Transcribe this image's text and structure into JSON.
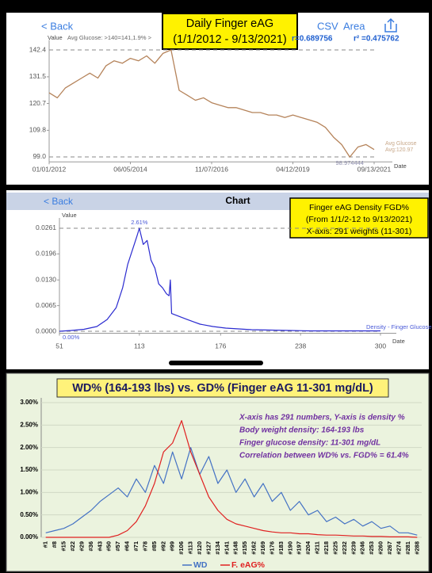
{
  "chart_data": [
    {
      "type": "line",
      "header": {
        "back": "< Back",
        "actions": [
          "CSV",
          "Area"
        ]
      },
      "title": [
        "Daily Finger eAG",
        "(1/1/2012 - 9/13/2021)"
      ],
      "y_label": "Value",
      "x_label": "Date",
      "annotations": [
        "Avg Glucose: >140=141,1.9% >",
        "r=0.689756",
        "r² =0.475762",
        "Avg:120.97"
      ],
      "categories": [
        "01/01/2012",
        null,
        null,
        null,
        null,
        null,
        null,
        null,
        null,
        null,
        "06/05/2014",
        null,
        null,
        null,
        null,
        null,
        null,
        null,
        null,
        null,
        "11/07/2016",
        null,
        null,
        null,
        null,
        null,
        null,
        null,
        null,
        null,
        "04/12/2019",
        null,
        null,
        null,
        null,
        null,
        null,
        null,
        null,
        null,
        "09/13/2021"
      ],
      "series": [
        {
          "name": "Avg Glucose",
          "color": "#b5835a",
          "values": [
            125,
            123,
            127,
            129,
            131,
            133,
            131,
            136,
            138,
            137,
            139,
            138,
            140,
            137,
            141,
            142.4,
            126,
            124,
            122,
            123,
            121,
            120,
            119,
            119,
            118,
            117,
            117,
            116,
            116,
            115,
            116,
            115,
            114,
            113,
            111,
            107,
            104,
            98.974444,
            103,
            104,
            102
          ],
          "value_labels": [
            null,
            null,
            null,
            null,
            null,
            null,
            null,
            null,
            null,
            null,
            null,
            null,
            null,
            null,
            null,
            null,
            null,
            null,
            null,
            null,
            null,
            null,
            null,
            null,
            null,
            null,
            null,
            null,
            null,
            null,
            null,
            null,
            null,
            null,
            null,
            null,
            null,
            "98.974444",
            null,
            null,
            null
          ]
        }
      ],
      "ylim": [
        97,
        144.5
      ],
      "yticks": [
        {
          "value": 99,
          "label": "99.0"
        },
        109.8,
        120.7,
        131.5,
        142.4
      ],
      "grid": false
    },
    {
      "type": "line",
      "header": {
        "back": "< Back",
        "title": "Chart"
      },
      "title": [
        "Finger eAG Density FGD%",
        "(From 1/1/2-12 to 9/13/2021)",
        "X-axis: 291 weights (11-301)"
      ],
      "y_label": "Value",
      "x_label": "Date",
      "x": [
        51,
        60,
        70,
        80,
        88,
        95,
        100,
        104,
        108,
        111,
        113,
        116,
        119,
        122,
        125,
        128,
        131,
        134,
        136,
        137,
        138,
        142,
        146,
        150,
        155,
        160,
        170,
        180,
        190,
        200,
        215,
        230,
        245,
        260,
        280,
        300
      ],
      "series": [
        {
          "name": "Density - Finger Glucose",
          "color": "#2b2bd0",
          "values": [
            0,
            0.0002,
            0.0005,
            0.0012,
            0.003,
            0.006,
            0.011,
            0.017,
            0.021,
            0.024,
            0.0261,
            0.022,
            0.023,
            0.018,
            0.016,
            0.012,
            0.011,
            0.0095,
            0.009,
            0.013,
            0.0045,
            0.004,
            0.0035,
            0.003,
            0.0024,
            0.0018,
            0.0012,
            0.0008,
            0.0006,
            0.0004,
            0.0003,
            0.0002,
            0.0001,
            0.0001,
            0.0001,
            0.0001
          ],
          "value_labels": [
            "0.00%",
            null,
            null,
            null,
            null,
            null,
            null,
            null,
            null,
            null,
            "2.61%",
            null,
            null,
            null,
            null,
            null,
            null,
            null,
            null,
            null,
            null,
            null,
            null,
            null,
            null,
            null,
            null,
            null,
            null,
            null,
            null,
            null,
            null,
            null,
            null,
            null
          ]
        }
      ],
      "xlim": [
        51,
        300
      ],
      "xticks": [
        51,
        113,
        176,
        238,
        300
      ],
      "ylim": [
        -0.0005,
        0.0275
      ],
      "yticks": [
        {
          "value": 0,
          "label": "0.0000"
        },
        0.0065,
        {
          "value": 0.013,
          "label": "0.0130"
        },
        0.0196,
        0.0261
      ],
      "grid": false
    },
    {
      "type": "line",
      "title": [
        "WD% (164-193 lbs)  vs.  GD% (Finger eAG 11-301 mg/dL)"
      ],
      "annotations": [
        "X-axis has 291 numbers, Y-axis is density %",
        "Body weight density:  164-193 lbs",
        "Finger glucose density:  11-301 mg/dL",
        "Correlation between WD% vs. FGD% = 61.4%"
      ],
      "categories": [
        "#1",
        "#8",
        "#15",
        "#22",
        "#29",
        "#36",
        "#43",
        "#50",
        "#57",
        "#64",
        "#71",
        "#78",
        "#85",
        "#92",
        "#99",
        "#106",
        "#113",
        "#120",
        "#127",
        "#134",
        "#141",
        "#148",
        "#155",
        "#162",
        "#169",
        "#176",
        "#183",
        "#190",
        "#197",
        "#204",
        "#211",
        "#218",
        "#225",
        "#232",
        "#239",
        "#246",
        "#253",
        "#260",
        "#267",
        "#274",
        "#281",
        "#288"
      ],
      "series": [
        {
          "name": "WD",
          "color": "#4472c4",
          "values": [
            0.1,
            0.15,
            0.2,
            0.3,
            0.45,
            0.6,
            0.8,
            0.95,
            1.1,
            0.9,
            1.3,
            1.0,
            1.6,
            1.2,
            1.9,
            1.3,
            2.0,
            1.4,
            1.8,
            1.2,
            1.5,
            1.0,
            1.3,
            0.9,
            1.2,
            0.8,
            1.0,
            0.6,
            0.8,
            0.5,
            0.6,
            0.35,
            0.45,
            0.3,
            0.4,
            0.25,
            0.35,
            0.2,
            0.25,
            0.1,
            0.1,
            0.05
          ]
        },
        {
          "name": "F. eAG%",
          "color": "#e02020",
          "values": [
            0,
            0,
            0,
            0,
            0,
            0,
            0,
            0,
            0.05,
            0.15,
            0.35,
            0.7,
            1.2,
            1.9,
            2.1,
            2.6,
            1.9,
            1.4,
            0.9,
            0.6,
            0.4,
            0.3,
            0.25,
            0.2,
            0.15,
            0.12,
            0.1,
            0.1,
            0.08,
            0.08,
            0.06,
            0.05,
            0.05,
            0.04,
            0.03,
            0.03,
            0.02,
            0.02,
            0.01,
            0.01,
            0.01,
            0
          ]
        }
      ],
      "ylim": [
        0,
        3
      ],
      "yticks": [
        {
          "value": 0,
          "label": "0.00%"
        },
        {
          "value": 0.5,
          "label": "0.50%"
        },
        {
          "value": 1,
          "label": "1.00%"
        },
        {
          "value": 1.5,
          "label": "1.50%"
        },
        {
          "value": 2,
          "label": "2.00%"
        },
        {
          "value": 2.5,
          "label": "2.50%"
        },
        {
          "value": 3,
          "label": "3.00%"
        }
      ],
      "grid": true
    }
  ]
}
